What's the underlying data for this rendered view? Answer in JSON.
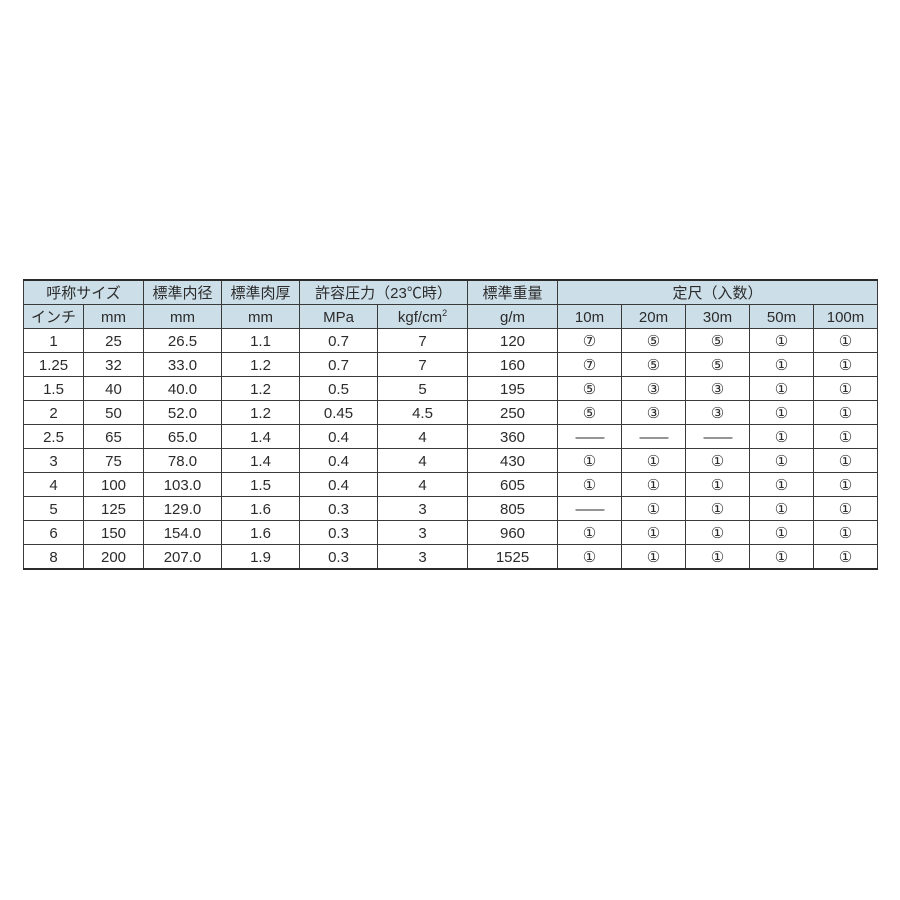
{
  "table": {
    "header_bg": "#ccdee8",
    "border_color": "#3a3a3a",
    "groups": {
      "size": "呼称サイズ",
      "id": "標準内径",
      "thick": "標準肉厚",
      "press": "許容圧力（23℃時）",
      "weight": "標準重量",
      "length": "定尺（入数）"
    },
    "units": {
      "inch": "インチ",
      "mm": "mm",
      "id": "mm",
      "thick": "mm",
      "mpa": "MPa",
      "kgf": "kgf/cm²",
      "weight": "g/m",
      "l10": "10m",
      "l20": "20m",
      "l30": "30m",
      "l50": "50m",
      "l100": "100m"
    },
    "rows": [
      {
        "inch": "1",
        "mm": "25",
        "id": "26.5",
        "th": "1.1",
        "mpa": "0.7",
        "kgf": "7",
        "wt": "120",
        "l": [
          "⑦",
          "⑤",
          "⑤",
          "①",
          "①"
        ]
      },
      {
        "inch": "1.25",
        "mm": "32",
        "id": "33.0",
        "th": "1.2",
        "mpa": "0.7",
        "kgf": "7",
        "wt": "160",
        "l": [
          "⑦",
          "⑤",
          "⑤",
          "①",
          "①"
        ]
      },
      {
        "inch": "1.5",
        "mm": "40",
        "id": "40.0",
        "th": "1.2",
        "mpa": "0.5",
        "kgf": "5",
        "wt": "195",
        "l": [
          "⑤",
          "③",
          "③",
          "①",
          "①"
        ]
      },
      {
        "inch": "2",
        "mm": "50",
        "id": "52.0",
        "th": "1.2",
        "mpa": "0.45",
        "kgf": "4.5",
        "wt": "250",
        "l": [
          "⑤",
          "③",
          "③",
          "①",
          "①"
        ]
      },
      {
        "inch": "2.5",
        "mm": "65",
        "id": "65.0",
        "th": "1.4",
        "mpa": "0.4",
        "kgf": "4",
        "wt": "360",
        "l": [
          "—",
          "—",
          "—",
          "①",
          "①"
        ]
      },
      {
        "inch": "3",
        "mm": "75",
        "id": "78.0",
        "th": "1.4",
        "mpa": "0.4",
        "kgf": "4",
        "wt": "430",
        "l": [
          "①",
          "①",
          "①",
          "①",
          "①"
        ]
      },
      {
        "inch": "4",
        "mm": "100",
        "id": "103.0",
        "th": "1.5",
        "mpa": "0.4",
        "kgf": "4",
        "wt": "605",
        "l": [
          "①",
          "①",
          "①",
          "①",
          "①"
        ]
      },
      {
        "inch": "5",
        "mm": "125",
        "id": "129.0",
        "th": "1.6",
        "mpa": "0.3",
        "kgf": "3",
        "wt": "805",
        "l": [
          "—",
          "①",
          "①",
          "①",
          "①"
        ]
      },
      {
        "inch": "6",
        "mm": "150",
        "id": "154.0",
        "th": "1.6",
        "mpa": "0.3",
        "kgf": "3",
        "wt": "960",
        "l": [
          "①",
          "①",
          "①",
          "①",
          "①"
        ]
      },
      {
        "inch": "8",
        "mm": "200",
        "id": "207.0",
        "th": "1.9",
        "mpa": "0.3",
        "kgf": "3",
        "wt": "1525",
        "l": [
          "①",
          "①",
          "①",
          "①",
          "①"
        ]
      }
    ]
  }
}
